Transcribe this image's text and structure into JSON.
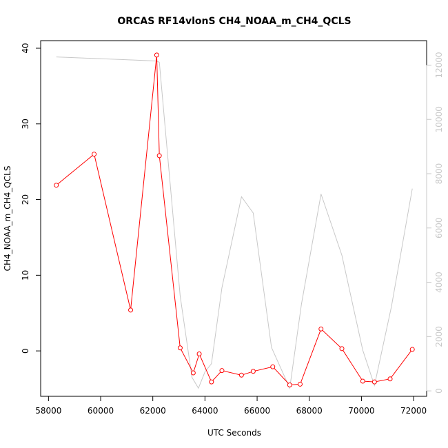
{
  "chart_data": {
    "type": "line",
    "title": "ORCAS RF14vlonS CH4_NOAA_m_CH4_QCLS",
    "xlabel": "UTC Seconds",
    "ylabel": "CH4_NOAA_m_CH4_QCLS",
    "y2label": "",
    "xlim": [
      57700,
      72500
    ],
    "ylim": [
      -6,
      41
    ],
    "y2lim": [
      -200,
      12900
    ],
    "x_ticks": [
      58000,
      60000,
      62000,
      64000,
      66000,
      68000,
      70000,
      72000
    ],
    "y_ticks": [
      0,
      10,
      20,
      30,
      40
    ],
    "y2_ticks": [
      0,
      2000,
      4000,
      6000,
      8000,
      10000,
      12000
    ],
    "grid": false,
    "series": [
      {
        "axis": "left",
        "color": "#ff0000",
        "marker": "open-circle",
        "points": [
          [
            58300,
            21.9
          ],
          [
            59750,
            26.0
          ],
          [
            61150,
            5.4
          ],
          [
            62150,
            39.1
          ],
          [
            62250,
            25.8
          ],
          [
            63050,
            0.4
          ],
          [
            63550,
            -2.9
          ],
          [
            63780,
            -0.4
          ],
          [
            64250,
            -4.1
          ],
          [
            64650,
            -2.6
          ],
          [
            65400,
            -3.2
          ],
          [
            65850,
            -2.7
          ],
          [
            66600,
            -2.1
          ],
          [
            67250,
            -4.5
          ],
          [
            67650,
            -4.4
          ],
          [
            68450,
            2.9
          ],
          [
            69250,
            0.3
          ],
          [
            70050,
            -4.0
          ],
          [
            70500,
            -4.1
          ],
          [
            71100,
            -3.7
          ],
          [
            71950,
            0.2
          ]
        ]
      },
      {
        "axis": "right",
        "color": "#c8c8c8",
        "points": [
          [
            58300,
            12300
          ],
          [
            62150,
            12150
          ],
          [
            62250,
            12100
          ],
          [
            63050,
            3500
          ],
          [
            63500,
            500
          ],
          [
            63750,
            100
          ],
          [
            64000,
            700
          ],
          [
            64250,
            1000
          ],
          [
            64650,
            3800
          ],
          [
            65400,
            7150
          ],
          [
            65850,
            6550
          ],
          [
            66550,
            1600
          ],
          [
            67250,
            100
          ],
          [
            67700,
            3200
          ],
          [
            68450,
            7250
          ],
          [
            69250,
            5000
          ],
          [
            70050,
            1500
          ],
          [
            70500,
            200
          ],
          [
            71150,
            3100
          ],
          [
            71950,
            7450
          ]
        ]
      }
    ]
  }
}
